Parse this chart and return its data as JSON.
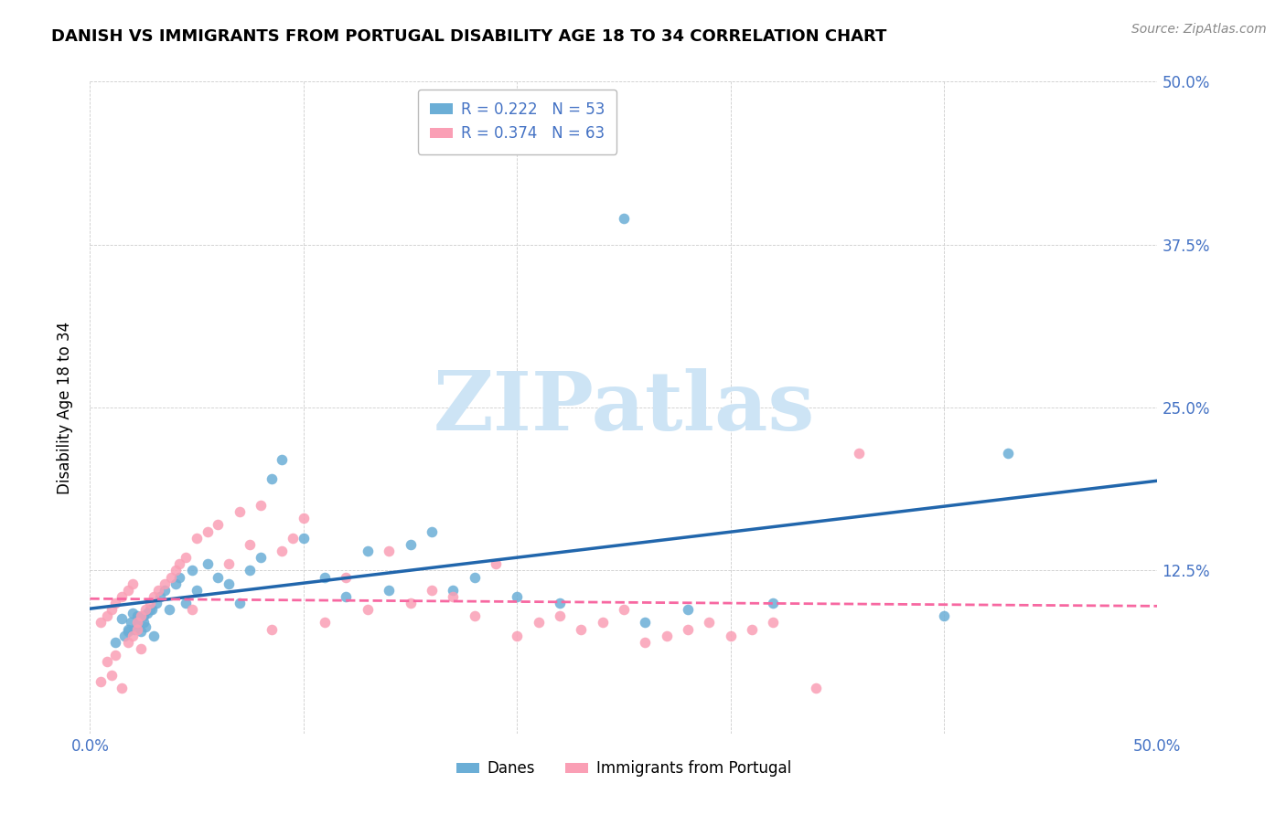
{
  "title": "DANISH VS IMMIGRANTS FROM PORTUGAL DISABILITY AGE 18 TO 34 CORRELATION CHART",
  "source": "Source: ZipAtlas.com",
  "ylabel": "Disability Age 18 to 34",
  "xlim": [
    0.0,
    0.5
  ],
  "ylim": [
    0.0,
    0.5
  ],
  "danes_R": 0.222,
  "danes_N": 53,
  "portugal_R": 0.374,
  "portugal_N": 63,
  "danes_color": "#6baed6",
  "portugal_color": "#fa9fb5",
  "danes_line_color": "#2166ac",
  "portugal_line_color": "#f768a1",
  "watermark_zip": "ZIP",
  "watermark_atlas": "atlas",
  "watermark_color_zip": "#c8dff0",
  "watermark_color_atlas": "#c8dff0",
  "danes_x": [
    0.022,
    0.025,
    0.028,
    0.018,
    0.03,
    0.015,
    0.02,
    0.022,
    0.024,
    0.026,
    0.012,
    0.016,
    0.018,
    0.019,
    0.021,
    0.023,
    0.025,
    0.027,
    0.029,
    0.031,
    0.033,
    0.035,
    0.037,
    0.04,
    0.042,
    0.045,
    0.048,
    0.05,
    0.055,
    0.06,
    0.065,
    0.07,
    0.075,
    0.08,
    0.085,
    0.09,
    0.1,
    0.11,
    0.12,
    0.13,
    0.14,
    0.15,
    0.16,
    0.17,
    0.18,
    0.2,
    0.22,
    0.25,
    0.28,
    0.32,
    0.26,
    0.4,
    0.43
  ],
  "danes_y": [
    0.09,
    0.085,
    0.095,
    0.08,
    0.075,
    0.088,
    0.092,
    0.083,
    0.078,
    0.082,
    0.07,
    0.075,
    0.078,
    0.085,
    0.08,
    0.088,
    0.09,
    0.092,
    0.095,
    0.1,
    0.105,
    0.11,
    0.095,
    0.115,
    0.12,
    0.1,
    0.125,
    0.11,
    0.13,
    0.12,
    0.115,
    0.1,
    0.125,
    0.135,
    0.195,
    0.21,
    0.15,
    0.12,
    0.105,
    0.14,
    0.11,
    0.145,
    0.155,
    0.11,
    0.12,
    0.105,
    0.1,
    0.395,
    0.095,
    0.1,
    0.085,
    0.09,
    0.215
  ],
  "portugal_x": [
    0.005,
    0.008,
    0.01,
    0.012,
    0.015,
    0.018,
    0.02,
    0.022,
    0.024,
    0.005,
    0.008,
    0.01,
    0.012,
    0.015,
    0.018,
    0.02,
    0.022,
    0.024,
    0.026,
    0.028,
    0.03,
    0.032,
    0.035,
    0.038,
    0.04,
    0.042,
    0.045,
    0.048,
    0.05,
    0.055,
    0.06,
    0.065,
    0.07,
    0.075,
    0.08,
    0.085,
    0.09,
    0.095,
    0.1,
    0.11,
    0.12,
    0.13,
    0.14,
    0.15,
    0.16,
    0.17,
    0.18,
    0.19,
    0.2,
    0.21,
    0.22,
    0.23,
    0.24,
    0.25,
    0.26,
    0.27,
    0.28,
    0.29,
    0.3,
    0.31,
    0.32,
    0.34,
    0.36
  ],
  "portugal_y": [
    0.04,
    0.055,
    0.045,
    0.06,
    0.035,
    0.07,
    0.075,
    0.08,
    0.065,
    0.085,
    0.09,
    0.095,
    0.1,
    0.105,
    0.11,
    0.115,
    0.085,
    0.09,
    0.095,
    0.1,
    0.105,
    0.11,
    0.115,
    0.12,
    0.125,
    0.13,
    0.135,
    0.095,
    0.15,
    0.155,
    0.16,
    0.13,
    0.17,
    0.145,
    0.175,
    0.08,
    0.14,
    0.15,
    0.165,
    0.085,
    0.12,
    0.095,
    0.14,
    0.1,
    0.11,
    0.105,
    0.09,
    0.13,
    0.075,
    0.085,
    0.09,
    0.08,
    0.085,
    0.095,
    0.07,
    0.075,
    0.08,
    0.085,
    0.075,
    0.08,
    0.085,
    0.035,
    0.215
  ]
}
